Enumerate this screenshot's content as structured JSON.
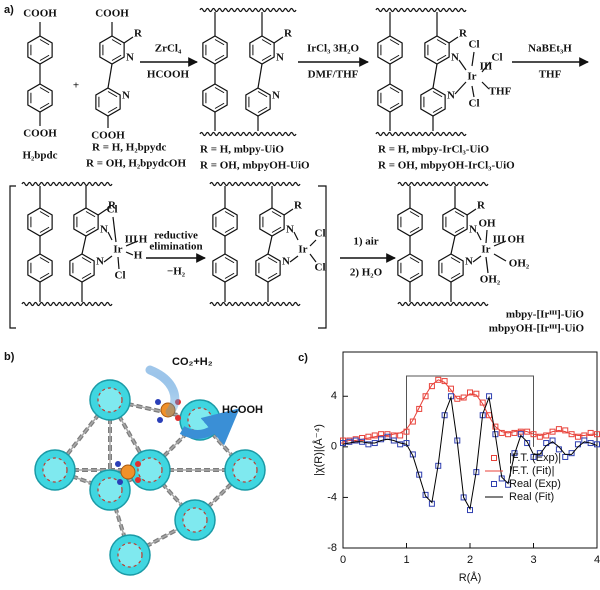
{
  "scheme": {
    "label": "a)",
    "atoms": {
      "cooh": "COOH",
      "r": "R",
      "n": "N",
      "ir": "Ir",
      "iii": "III",
      "cl": "Cl",
      "h": "H",
      "oh": "OH",
      "oh2": "OH₂",
      "thf": "THF",
      "plus": "+"
    },
    "reagents": {
      "zrcl4": "ZrCl₄",
      "hcooh": "HCOOH",
      "ircl3": "IrCl₃ 3H₂O",
      "dmf_thf": "DMF/THF",
      "nabet3h": "NaBEt₃H",
      "thf": "THF",
      "reductive": "reductive",
      "elimination": "elimination",
      "minus_h2": "−H₂",
      "air": "1) air",
      "water": "2) H₂O"
    },
    "names": {
      "h2bpdc": "H₂bpdc",
      "h2bpydc": "R = H, H₂bpydc",
      "h2bpydcoh": "R = OH, H₂bpydcOH",
      "mbpy_uio": "R = H, mbpy-UiO",
      "mbpyoh_uio": "R = OH, mbpyOH-UiO",
      "mbpy_ircl3": "R = H, mbpy-IrCl₃-UiO",
      "mbpyoh_ircl3": "R = OH, mbpyOH-IrCl₃-UiO",
      "mbpy_ir": "mbpy-[Irᴵᴵᴵ]-UiO",
      "mbpyoh_ir": "mbpyOH-[Irᴵᴵᴵ]-UiO"
    }
  },
  "structure_panel": {
    "label": "b)",
    "reactants": "CO₂+H₂",
    "product": "HCOOH"
  },
  "chart_data": {
    "type": "line",
    "panel_label": "c)",
    "x_label": "R(Å)",
    "y_label": "|χ(R)|(Å⁻⁴)",
    "xlim": [
      0,
      4
    ],
    "ylim": [
      -8,
      7.5
    ],
    "xticks": [
      0,
      1,
      2,
      3,
      4
    ],
    "yticks": [
      -8,
      -4,
      0,
      4
    ],
    "legend": "lower right",
    "x": [
      0,
      0.1,
      0.2,
      0.3,
      0.4,
      0.5,
      0.6,
      0.7,
      0.8,
      0.9,
      1,
      1.1,
      1.2,
      1.3,
      1.4,
      1.5,
      1.6,
      1.7,
      1.8,
      1.9,
      2,
      2.1,
      2.2,
      2.3,
      2.4,
      2.5,
      2.6,
      2.7,
      2.8,
      2.9,
      3,
      3.1,
      3.2,
      3.3,
      3.4,
      3.5,
      3.6,
      3.7,
      3.8,
      3.9,
      4
    ],
    "series": [
      {
        "name": "|F.T. (Exp)|",
        "color": "#e8423a",
        "style": "square",
        "values": [
          0.5,
          0.5,
          0.6,
          0.7,
          0.8,
          0.9,
          1.0,
          1.0,
          0.9,
          0.9,
          1.2,
          2.0,
          3.0,
          4.0,
          4.8,
          5.3,
          5.2,
          4.6,
          3.8,
          3.9,
          4.3,
          4.2,
          3.5,
          2.5,
          1.6,
          1.1,
          1.0,
          1.1,
          1.2,
          1.2,
          1.0,
          0.8,
          0.9,
          1.2,
          1.4,
          1.3,
          1.0,
          0.8,
          0.9,
          1.1,
          1.0
        ]
      },
      {
        "name": "|F.T. (Fit)|",
        "color": "#e8423a",
        "style": "line",
        "values": [
          0.4,
          0.5,
          0.5,
          0.6,
          0.7,
          0.8,
          0.9,
          0.9,
          1.0,
          1.1,
          1.4,
          2.1,
          3.1,
          4.1,
          4.9,
          5.3,
          5.1,
          4.5,
          3.8,
          3.8,
          4.2,
          4.1,
          3.4,
          2.4,
          1.6,
          1.2,
          1.1,
          1.2,
          1.3,
          1.2,
          1.0,
          0.9,
          1.0,
          1.2,
          1.3,
          1.2,
          1.0,
          0.9,
          0.9,
          1.0,
          1.0
        ]
      },
      {
        "name": "Real (Exp)",
        "color": "#2f3fb0",
        "style": "square",
        "values": [
          0.3,
          0.4,
          0.5,
          0.4,
          0.2,
          0.3,
          0.6,
          0.8,
          0.5,
          0.2,
          0.3,
          -0.6,
          -2.2,
          -3.8,
          -4.5,
          -1.5,
          2.5,
          4.0,
          0.5,
          -4.0,
          -5.0,
          -2.0,
          2.5,
          4.0,
          1.0,
          -2.5,
          -3.0,
          -0.5,
          1.0,
          0.3,
          -0.8,
          -0.5,
          0.3,
          0.5,
          -0.2,
          -0.8,
          -0.5,
          0.2,
          0.5,
          0.3,
          0.2
        ]
      },
      {
        "name": "Real (Fit)",
        "color": "#000000",
        "style": "line",
        "values": [
          0.2,
          0.3,
          0.4,
          0.4,
          0.3,
          0.3,
          0.5,
          0.6,
          0.5,
          0.3,
          0.2,
          -0.7,
          -2.3,
          -3.9,
          -4.4,
          -1.4,
          2.6,
          3.9,
          0.4,
          -4.0,
          -4.9,
          -1.9,
          2.6,
          3.9,
          0.9,
          -2.4,
          -2.9,
          -0.6,
          0.9,
          0.4,
          -0.6,
          -0.6,
          0.1,
          0.4,
          0.0,
          -0.6,
          -0.6,
          0.0,
          0.4,
          0.3,
          0.1
        ]
      }
    ],
    "window": {
      "color": "#555555",
      "x": [
        1,
        1,
        3,
        3
      ],
      "values": [
        0,
        5.6,
        5.6,
        0
      ]
    }
  }
}
